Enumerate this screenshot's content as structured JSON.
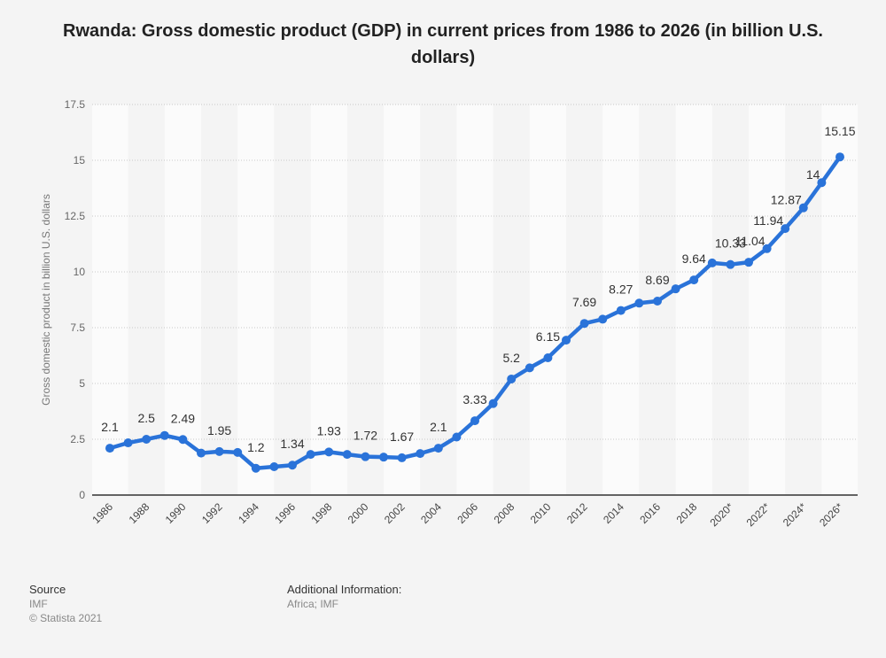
{
  "title": "Rwanda: Gross domestic product (GDP) in current prices from 1986 to 2026 (in billion U.S. dollars)",
  "footer": {
    "source_label": "Source",
    "source_value": "IMF",
    "copyright": "© Statista 2021",
    "additional_label": "Additional Information:",
    "additional_value": "Africa; IMF"
  },
  "colors": {
    "line": "#2a73d9",
    "band": "#fbfbfb",
    "background": "#f4f4f4"
  },
  "chart_data": {
    "type": "line",
    "title": "Rwanda: Gross domestic product (GDP) in current prices from 1986 to 2026 (in billion U.S. dollars)",
    "xlabel": "",
    "ylabel": "Gross domestic product in billion U.S. dollars",
    "ylim": [
      0,
      17.5
    ],
    "yticks": [
      0,
      2.5,
      5,
      7.5,
      10,
      12.5,
      15,
      17.5
    ],
    "ytick_labels": [
      "0",
      "2.5",
      "5",
      "7.5",
      "10",
      "12.5",
      "15",
      "17.5"
    ],
    "grid": true,
    "x": [
      "1986",
      "1987",
      "1988",
      "1989",
      "1990",
      "1991",
      "1992",
      "1993",
      "1994",
      "1995",
      "1996",
      "1997",
      "1998",
      "1999",
      "2000",
      "2001",
      "2002",
      "2003",
      "2004",
      "2005",
      "2006",
      "2007",
      "2008",
      "2009",
      "2010",
      "2011",
      "2012",
      "2013",
      "2014",
      "2015",
      "2016",
      "2017",
      "2018",
      "2019",
      "2020*",
      "2021*",
      "2022*",
      "2023*",
      "2024*",
      "2025*",
      "2026*"
    ],
    "xtick_labels": [
      "1986",
      "1988",
      "1990",
      "1992",
      "1994",
      "1996",
      "1998",
      "2000",
      "2002",
      "2004",
      "2006",
      "2008",
      "2010",
      "2012",
      "2014",
      "2016",
      "2018",
      "2020*",
      "2022*",
      "2024*",
      "2026*"
    ],
    "series": [
      {
        "name": "GDP",
        "values": [
          2.1,
          2.34,
          2.5,
          2.67,
          2.49,
          1.88,
          1.95,
          1.91,
          1.2,
          1.27,
          1.34,
          1.82,
          1.93,
          1.82,
          1.72,
          1.7,
          1.67,
          1.86,
          2.1,
          2.6,
          3.33,
          4.1,
          5.2,
          5.7,
          6.15,
          6.94,
          7.69,
          7.88,
          8.27,
          8.6,
          8.69,
          9.24,
          9.64,
          10.4,
          10.33,
          10.43,
          11.04,
          11.94,
          12.87,
          14,
          15.15
        ],
        "labels": [
          "2.1",
          null,
          "2.5",
          null,
          "2.49",
          null,
          "1.95",
          null,
          "1.2",
          null,
          "1.34",
          null,
          "1.93",
          null,
          "1.72",
          null,
          "1.67",
          null,
          "2.1",
          null,
          "3.33",
          null,
          "5.2",
          null,
          "6.15",
          null,
          "7.69",
          null,
          "8.27",
          null,
          "8.69",
          null,
          "9.64",
          null,
          "10.33",
          null,
          "11.04",
          "11.94",
          "12.87",
          "14",
          "15.15"
        ]
      }
    ]
  }
}
